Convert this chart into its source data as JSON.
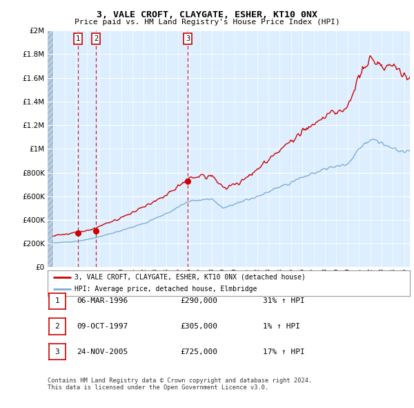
{
  "title": "3, VALE CROFT, CLAYGATE, ESHER, KT10 0NX",
  "subtitle": "Price paid vs. HM Land Registry's House Price Index (HPI)",
  "legend_property": "3, VALE CROFT, CLAYGATE, ESHER, KT10 0NX (detached house)",
  "legend_hpi": "HPI: Average price, detached house, Elmbridge",
  "sales": [
    {
      "label": "1",
      "date_year": 1996.18,
      "price": 290000
    },
    {
      "label": "2",
      "date_year": 1997.77,
      "price": 305000
    },
    {
      "label": "3",
      "date_year": 2005.9,
      "price": 725000
    }
  ],
  "table_rows": [
    [
      "1",
      "06-MAR-1996",
      "£290,000",
      "31% ↑ HPI"
    ],
    [
      "2",
      "09-OCT-1997",
      "£305,000",
      "1% ↑ HPI"
    ],
    [
      "3",
      "24-NOV-2005",
      "£725,000",
      "17% ↑ HPI"
    ]
  ],
  "footer": "Contains HM Land Registry data © Crown copyright and database right 2024.\nThis data is licensed under the Open Government Licence v3.0.",
  "xmin": 1993.5,
  "xmax": 2025.5,
  "ymin": 0,
  "ymax": 2000000,
  "property_color": "#cc0000",
  "hpi_color": "#7bafd4",
  "background_plot": "#ddeeff",
  "grid_color": "#ffffff",
  "vline_color": "#cc0000",
  "marker_color": "#cc0000",
  "hatch_color": "#b8cce0"
}
